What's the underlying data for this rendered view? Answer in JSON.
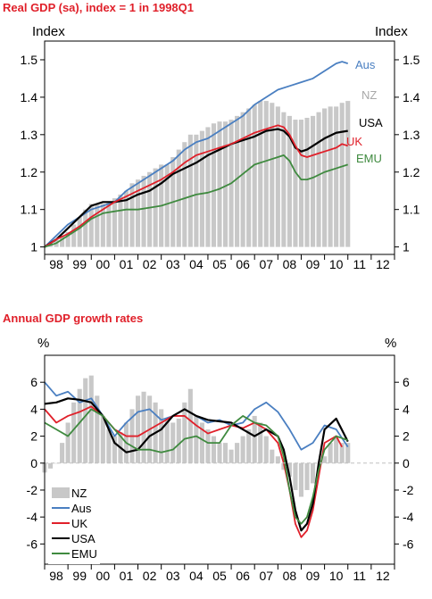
{
  "chart_data": [
    {
      "type": "line",
      "title": "Real GDP (sa), index = 1 in 1998Q1",
      "ylabel_left": "Index",
      "ylabel_right": "Index",
      "ylim": [
        0.98,
        1.55
      ],
      "yticks": [
        1,
        1.1,
        1.2,
        1.3,
        1.4,
        1.5
      ],
      "ytick_labels": [
        "1",
        "1.1",
        "1.2",
        "1.3",
        "1.4",
        "1.5"
      ],
      "xlim": [
        1998,
        2013
      ],
      "xtick_labels": [
        "98",
        "99",
        "00",
        "01",
        "02",
        "03",
        "04",
        "05",
        "06",
        "07",
        "08",
        "09",
        "10",
        "11",
        "12"
      ],
      "grid": false,
      "series": [
        {
          "name": "NZ",
          "kind": "bar",
          "color": "#c8c8c8",
          "x": [
            1998.0,
            1998.25,
            1998.5,
            1998.75,
            1999.0,
            1999.25,
            1999.5,
            1999.75,
            2000.0,
            2000.25,
            2000.5,
            2000.75,
            2001.0,
            2001.25,
            2001.5,
            2001.75,
            2002.0,
            2002.25,
            2002.5,
            2002.75,
            2003.0,
            2003.25,
            2003.5,
            2003.75,
            2004.0,
            2004.25,
            2004.5,
            2004.75,
            2005.0,
            2005.25,
            2005.5,
            2005.75,
            2006.0,
            2006.25,
            2006.5,
            2006.75,
            2007.0,
            2007.25,
            2007.5,
            2007.75,
            2008.0,
            2008.25,
            2008.5,
            2008.75,
            2009.0,
            2009.25,
            2009.5,
            2009.75,
            2010.0,
            2010.25,
            2010.5,
            2010.75,
            2011.0
          ],
          "values": [
            1.0,
            1.01,
            1.02,
            1.03,
            1.04,
            1.06,
            1.08,
            1.1,
            1.115,
            1.115,
            1.115,
            1.12,
            1.13,
            1.14,
            1.15,
            1.17,
            1.18,
            1.19,
            1.2,
            1.21,
            1.22,
            1.22,
            1.24,
            1.26,
            1.28,
            1.3,
            1.3,
            1.31,
            1.32,
            1.33,
            1.335,
            1.335,
            1.34,
            1.35,
            1.36,
            1.37,
            1.38,
            1.39,
            1.39,
            1.385,
            1.375,
            1.36,
            1.35,
            1.34,
            1.34,
            1.345,
            1.35,
            1.36,
            1.37,
            1.375,
            1.375,
            1.385,
            1.39
          ]
        },
        {
          "name": "Aus",
          "color": "#4a7fc1",
          "x": [
            1998.0,
            1998.5,
            1999.0,
            1999.5,
            2000.0,
            2000.5,
            2001.0,
            2001.5,
            2002.0,
            2002.5,
            2003.0,
            2003.5,
            2004.0,
            2004.5,
            2005.0,
            2005.5,
            2006.0,
            2006.5,
            2007.0,
            2007.5,
            2008.0,
            2008.5,
            2009.0,
            2009.5,
            2010.0,
            2010.5,
            2010.75,
            2011.0
          ],
          "values": [
            1.0,
            1.03,
            1.06,
            1.08,
            1.1,
            1.11,
            1.12,
            1.15,
            1.17,
            1.19,
            1.21,
            1.23,
            1.26,
            1.28,
            1.29,
            1.31,
            1.33,
            1.35,
            1.38,
            1.4,
            1.42,
            1.43,
            1.44,
            1.45,
            1.47,
            1.49,
            1.495,
            1.49
          ]
        },
        {
          "name": "USA",
          "color": "#000000",
          "x": [
            1998.0,
            1998.5,
            1999.0,
            1999.5,
            2000.0,
            2000.5,
            2001.0,
            2001.5,
            2002.0,
            2002.5,
            2003.0,
            2003.5,
            2004.0,
            2004.5,
            2005.0,
            2005.5,
            2006.0,
            2006.5,
            2007.0,
            2007.5,
            2008.0,
            2008.25,
            2008.5,
            2008.75,
            2009.0,
            2009.25,
            2009.5,
            2009.75,
            2010.0,
            2010.5,
            2011.0
          ],
          "values": [
            1.0,
            1.02,
            1.05,
            1.08,
            1.11,
            1.12,
            1.12,
            1.125,
            1.14,
            1.15,
            1.17,
            1.195,
            1.21,
            1.225,
            1.245,
            1.26,
            1.275,
            1.285,
            1.295,
            1.31,
            1.315,
            1.31,
            1.295,
            1.265,
            1.255,
            1.26,
            1.27,
            1.28,
            1.29,
            1.305,
            1.31
          ]
        },
        {
          "name": "UK",
          "color": "#e0202a",
          "x": [
            1998.0,
            1998.5,
            1999.0,
            1999.5,
            2000.0,
            2000.5,
            2001.0,
            2001.5,
            2002.0,
            2002.5,
            2003.0,
            2003.5,
            2004.0,
            2004.5,
            2005.0,
            2005.5,
            2006.0,
            2006.5,
            2007.0,
            2007.5,
            2008.0,
            2008.25,
            2008.5,
            2008.75,
            2009.0,
            2009.25,
            2009.5,
            2009.75,
            2010.0,
            2010.5,
            2010.75,
            2011.0
          ],
          "values": [
            1.0,
            1.02,
            1.035,
            1.055,
            1.08,
            1.1,
            1.12,
            1.135,
            1.15,
            1.165,
            1.18,
            1.2,
            1.225,
            1.245,
            1.255,
            1.265,
            1.275,
            1.29,
            1.305,
            1.315,
            1.325,
            1.32,
            1.3,
            1.27,
            1.245,
            1.24,
            1.245,
            1.25,
            1.255,
            1.265,
            1.275,
            1.27
          ]
        },
        {
          "name": "EMU",
          "color": "#3f8a3f",
          "x": [
            1998.0,
            1998.5,
            1999.0,
            1999.5,
            2000.0,
            2000.5,
            2001.0,
            2001.5,
            2002.0,
            2002.5,
            2003.0,
            2003.5,
            2004.0,
            2004.5,
            2005.0,
            2005.5,
            2006.0,
            2006.5,
            2007.0,
            2007.5,
            2008.0,
            2008.25,
            2008.5,
            2008.75,
            2009.0,
            2009.25,
            2009.5,
            2010.0,
            2010.5,
            2011.0
          ],
          "values": [
            1.0,
            1.01,
            1.03,
            1.05,
            1.075,
            1.09,
            1.095,
            1.1,
            1.1,
            1.105,
            1.11,
            1.12,
            1.13,
            1.14,
            1.145,
            1.155,
            1.17,
            1.195,
            1.22,
            1.23,
            1.24,
            1.245,
            1.23,
            1.2,
            1.18,
            1.18,
            1.185,
            1.2,
            1.21,
            1.22
          ]
        }
      ],
      "series_labels": [
        "Aus",
        "NZ",
        "USA",
        "UK",
        "EMU"
      ]
    },
    {
      "type": "line",
      "title": "Annual GDP growth rates",
      "ylabel_left": "%",
      "ylabel_right": "%",
      "ylim": [
        -7.5,
        8
      ],
      "yticks": [
        6,
        4,
        2,
        0,
        -2,
        -4,
        -6
      ],
      "ytick_labels": [
        "6",
        "4",
        "2",
        "0",
        "-2",
        "-4",
        "-6"
      ],
      "xlim": [
        1998,
        2013
      ],
      "xtick_labels": [
        "98",
        "99",
        "00",
        "01",
        "02",
        "03",
        "04",
        "05",
        "06",
        "07",
        "08",
        "09",
        "10",
        "11",
        "12"
      ],
      "grid": false,
      "legend": {
        "position": "bottom-left",
        "entries": [
          "NZ",
          "Aus",
          "UK",
          "USA",
          "EMU"
        ]
      },
      "series": [
        {
          "name": "NZ",
          "kind": "bar",
          "color": "#c8c8c8",
          "x": [
            1998.0,
            1998.25,
            1998.5,
            1998.75,
            1999.0,
            1999.25,
            1999.5,
            1999.75,
            2000.0,
            2000.25,
            2000.5,
            2000.75,
            2001.0,
            2001.25,
            2001.5,
            2001.75,
            2002.0,
            2002.25,
            2002.5,
            2002.75,
            2003.0,
            2003.25,
            2003.5,
            2003.75,
            2004.0,
            2004.25,
            2004.5,
            2004.75,
            2005.0,
            2005.25,
            2005.5,
            2005.75,
            2006.0,
            2006.25,
            2006.5,
            2006.75,
            2007.0,
            2007.25,
            2007.5,
            2007.75,
            2008.0,
            2008.25,
            2008.5,
            2008.75,
            2009.0,
            2009.25,
            2009.5,
            2009.75,
            2010.0,
            2010.25,
            2010.5,
            2010.75,
            2011.0
          ],
          "values": [
            -0.7,
            -0.4,
            0.0,
            1.5,
            3.0,
            4.5,
            5.5,
            6.3,
            6.5,
            5.0,
            3.5,
            2.5,
            2.0,
            2.3,
            3.0,
            4.0,
            5.0,
            5.3,
            5.0,
            4.5,
            4.0,
            3.3,
            3.0,
            3.3,
            4.5,
            5.5,
            3.5,
            3.0,
            2.5,
            2.0,
            1.5,
            1.5,
            1.0,
            1.5,
            2.0,
            2.5,
            3.5,
            3.0,
            2.0,
            1.0,
            0.5,
            -0.5,
            -1.0,
            -2.0,
            -2.5,
            -2.0,
            -1.5,
            0.0,
            0.5,
            1.5,
            2.0,
            1.5,
            1.5
          ]
        },
        {
          "name": "Aus",
          "color": "#4a7fc1",
          "x": [
            1998.0,
            1998.5,
            1999.0,
            1999.5,
            2000.0,
            2000.5,
            2001.0,
            2001.5,
            2002.0,
            2002.5,
            2003.0,
            2003.5,
            2004.0,
            2004.5,
            2005.0,
            2005.5,
            2006.0,
            2006.5,
            2007.0,
            2007.5,
            2008.0,
            2008.5,
            2009.0,
            2009.5,
            2010.0,
            2010.5,
            2011.0
          ],
          "values": [
            6.0,
            5.0,
            5.3,
            4.5,
            4.8,
            3.5,
            2.0,
            3.0,
            3.8,
            4.0,
            3.2,
            3.5,
            4.0,
            3.5,
            3.0,
            3.2,
            2.8,
            3.0,
            4.0,
            4.5,
            3.8,
            2.5,
            1.0,
            1.5,
            2.8,
            2.5,
            1.2
          ]
        },
        {
          "name": "UK",
          "color": "#e0202a",
          "x": [
            1998.0,
            1998.5,
            1999.0,
            1999.5,
            2000.0,
            2000.5,
            2001.0,
            2001.5,
            2002.0,
            2002.5,
            2003.0,
            2003.5,
            2004.0,
            2004.5,
            2005.0,
            2005.5,
            2006.0,
            2006.5,
            2007.0,
            2007.5,
            2008.0,
            2008.25,
            2008.5,
            2008.75,
            2009.0,
            2009.25,
            2009.5,
            2009.75,
            2010.0,
            2010.5,
            2010.75
          ],
          "values": [
            4.0,
            3.0,
            3.5,
            3.8,
            4.2,
            3.5,
            2.5,
            2.0,
            2.0,
            2.5,
            3.0,
            3.5,
            3.5,
            2.8,
            2.2,
            2.5,
            2.8,
            2.6,
            3.0,
            2.5,
            1.5,
            0.0,
            -2.0,
            -4.5,
            -5.5,
            -5.0,
            -3.5,
            -1.0,
            1.5,
            2.0,
            1.2
          ]
        },
        {
          "name": "USA",
          "color": "#000000",
          "x": [
            1998.0,
            1998.5,
            1999.0,
            1999.5,
            2000.0,
            2000.5,
            2001.0,
            2001.5,
            2002.0,
            2002.5,
            2003.0,
            2003.5,
            2004.0,
            2004.5,
            2005.0,
            2005.5,
            2006.0,
            2006.5,
            2007.0,
            2007.5,
            2008.0,
            2008.25,
            2008.5,
            2008.75,
            2009.0,
            2009.25,
            2009.5,
            2009.75,
            2010.0,
            2010.5,
            2011.0
          ],
          "values": [
            4.4,
            4.5,
            4.8,
            4.7,
            4.5,
            3.5,
            1.5,
            0.8,
            1.0,
            2.0,
            2.5,
            3.5,
            4.0,
            3.5,
            3.2,
            3.1,
            3.0,
            2.5,
            2.0,
            2.5,
            2.0,
            1.0,
            -1.0,
            -3.5,
            -5.0,
            -4.5,
            -3.0,
            0.0,
            2.5,
            3.3,
            1.6
          ]
        },
        {
          "name": "EMU",
          "color": "#3f8a3f",
          "x": [
            1998.0,
            1998.5,
            1999.0,
            1999.5,
            2000.0,
            2000.5,
            2001.0,
            2001.5,
            2002.0,
            2002.5,
            2003.0,
            2003.5,
            2004.0,
            2004.5,
            2005.0,
            2005.5,
            2006.0,
            2006.5,
            2007.0,
            2007.5,
            2008.0,
            2008.25,
            2008.5,
            2008.75,
            2009.0,
            2009.25,
            2009.5,
            2009.75,
            2010.0,
            2010.5,
            2011.0
          ],
          "values": [
            3.0,
            2.5,
            2.0,
            3.0,
            4.0,
            3.5,
            2.5,
            1.5,
            1.0,
            1.0,
            0.8,
            1.0,
            1.8,
            2.0,
            1.5,
            1.5,
            2.8,
            3.5,
            3.0,
            2.8,
            2.0,
            0.5,
            -2.0,
            -4.0,
            -4.5,
            -4.0,
            -2.5,
            -0.5,
            1.0,
            2.0,
            1.7
          ]
        }
      ]
    }
  ]
}
